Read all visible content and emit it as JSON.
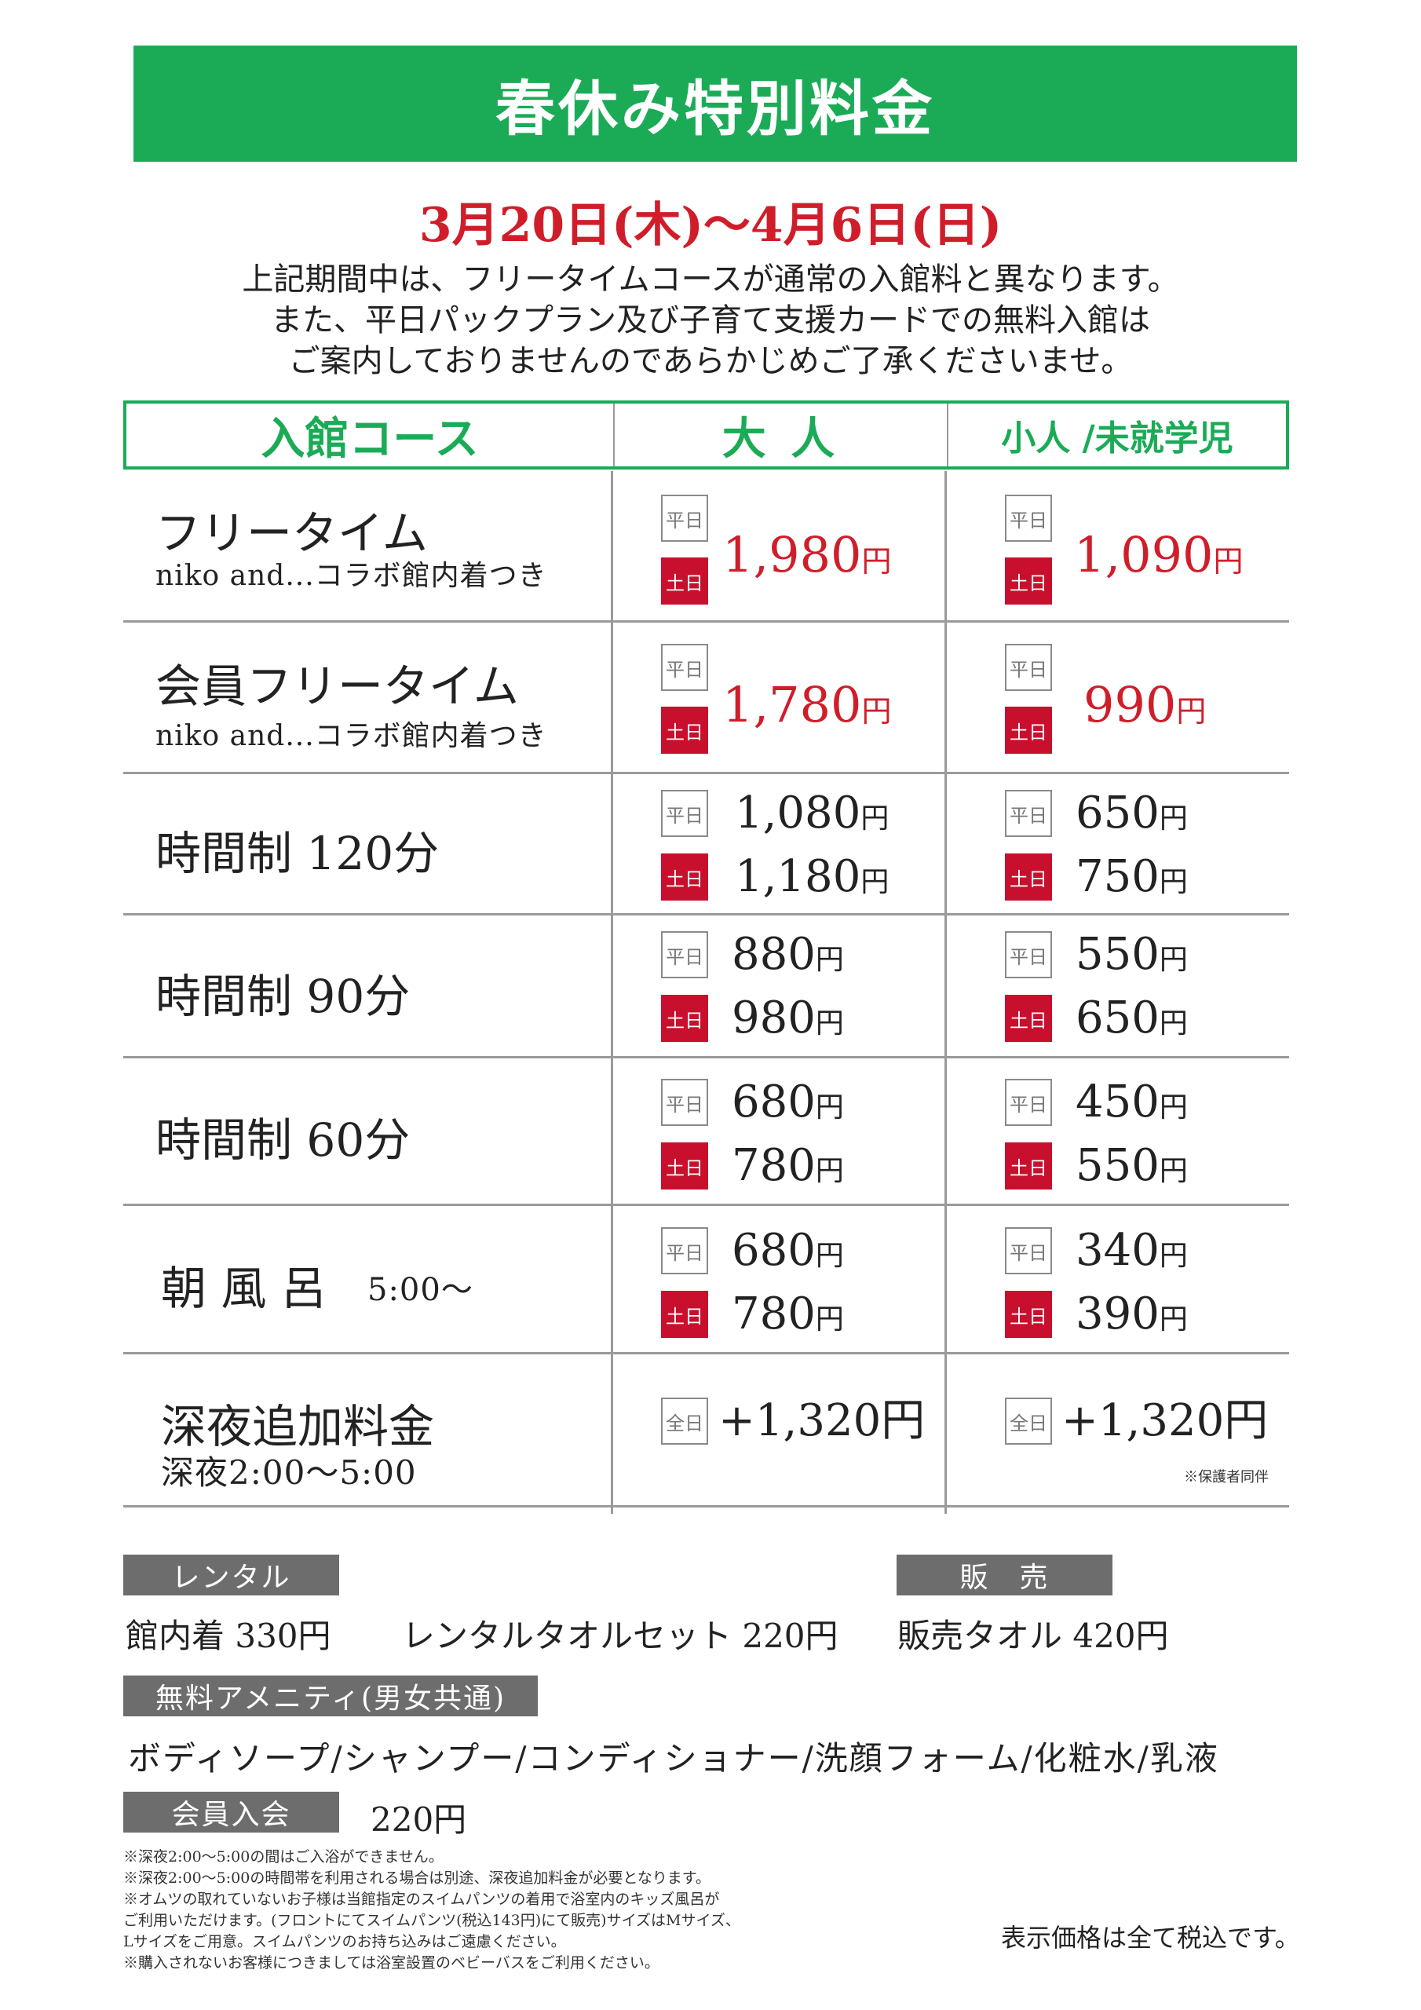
{
  "title": "春休み特別料金",
  "period": "3月20日(木)～4月6日(日)",
  "notice": [
    "上記期間中は、フリータイムコースが通常の入館料と異なります。",
    "また、平日パックプラン及び子育て支援カードでの無料入館は",
    "ご案内しておりませんのであらかじめご了承くださいませ。"
  ],
  "table": {
    "headers": {
      "course": "入館コース",
      "adult": "大 人",
      "child": "小人 /未就学児"
    },
    "tags": {
      "weekday": "平日",
      "weekend": "土日",
      "allday": "全日"
    },
    "yen": "円",
    "rows": [
      {
        "name": "フリータイム",
        "sub": "niko and...コラボ館内着つき",
        "adult": {
          "price": "1,980"
        },
        "child": {
          "price": "1,090"
        }
      },
      {
        "name": "会員フリータイム",
        "sub": "niko and...コラボ館内着つき",
        "adult": {
          "price": "1,780"
        },
        "child": {
          "price": "990"
        }
      },
      {
        "name": "時間制 120分",
        "adult": {
          "weekday": "1,080",
          "weekend": "1,180"
        },
        "child": {
          "weekday": "650",
          "weekend": "750"
        }
      },
      {
        "name": "時間制 90分",
        "adult": {
          "weekday": "880",
          "weekend": "980"
        },
        "child": {
          "weekday": "550",
          "weekend": "650"
        }
      },
      {
        "name": "時間制 60分",
        "adult": {
          "weekday": "680",
          "weekend": "780"
        },
        "child": {
          "weekday": "450",
          "weekend": "550"
        }
      },
      {
        "name": "朝 風 呂",
        "time": "5:00～",
        "adult": {
          "weekday": "680",
          "weekend": "780"
        },
        "child": {
          "weekday": "340",
          "weekend": "390"
        }
      },
      {
        "name": "深夜追加料金",
        "sub": "深夜2:00～5:00",
        "adult": {
          "price": "+1,320円"
        },
        "child": {
          "price": "+1,320円"
        },
        "note": "※保護者同伴"
      }
    ]
  },
  "rental": {
    "label": "レンタル",
    "items": [
      "館内着  330円",
      "レンタルタオルセット 220円"
    ]
  },
  "sale": {
    "label": "販　売",
    "items": [
      "販売タオル 420円"
    ]
  },
  "amenity": {
    "label": "無料アメニティ(男女共通)",
    "text": "ボディソープ/シャンプー/コンディショナー/洗顔フォーム/化粧水/乳液"
  },
  "membership": {
    "label": "会員入会",
    "price": "220円"
  },
  "footnotes": [
    "※深夜2:00～5:00の間はご入浴ができません。",
    "※深夜2:00～5:00の時間帯を利用される場合は別途、深夜追加料金が必要となります。",
    "※オムツの取れていないお子様は当館指定のスイムパンツの着用で浴室内のキッズ風呂が",
    "ご利用いただけます。(フロントにてスイムパンツ(税込143円)にて販売)サイズはMサイズ、",
    "Lサイズをご用意。スイムパンツのお持ち込みはご遠慮ください。",
    "※購入されないお客様につきましては浴室設置のベビーバスをご利用ください。"
  ],
  "tax_note": "表示価格は全て税込です。",
  "colors": {
    "green": "#1bab57",
    "red": "#cf1e2a",
    "tag_red": "#c8102e",
    "label_gray": "#6d6d6d"
  }
}
